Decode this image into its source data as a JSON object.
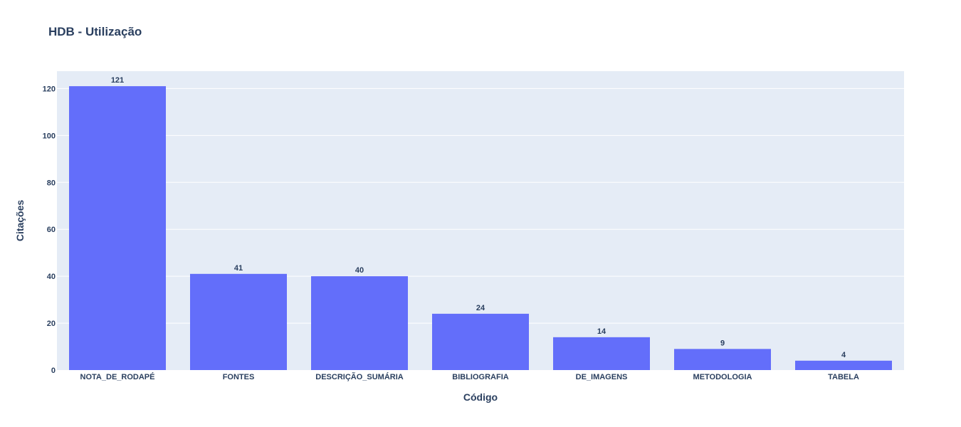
{
  "chart_data": {
    "type": "bar",
    "title": "HDB - Utilização",
    "xlabel": "Código",
    "ylabel": "Citações",
    "categories": [
      "NOTA_DE_RODAPÉ",
      "FONTES",
      "DESCRIÇÃO_SUMÁRIA",
      "BIBLIOGRAFIA",
      "DE_IMAGENS",
      "METODOLOGIA",
      "TABELA"
    ],
    "values": [
      121,
      41,
      40,
      24,
      14,
      9,
      4
    ],
    "data_labels": [
      "121",
      "41",
      "40",
      "24",
      "14",
      "9",
      "4"
    ],
    "ylim": [
      0,
      127.4
    ],
    "yticks": [
      0,
      20,
      40,
      60,
      80,
      100,
      120
    ],
    "ytick_labels": [
      "0",
      "20",
      "40",
      "60",
      "80",
      "100",
      "120"
    ],
    "grid": true,
    "legend": "none",
    "colors": {
      "bar": "#636efa",
      "plot_bg": "#e5ecf6",
      "grid": "#ffffff",
      "text": "#2a3f5f"
    }
  }
}
